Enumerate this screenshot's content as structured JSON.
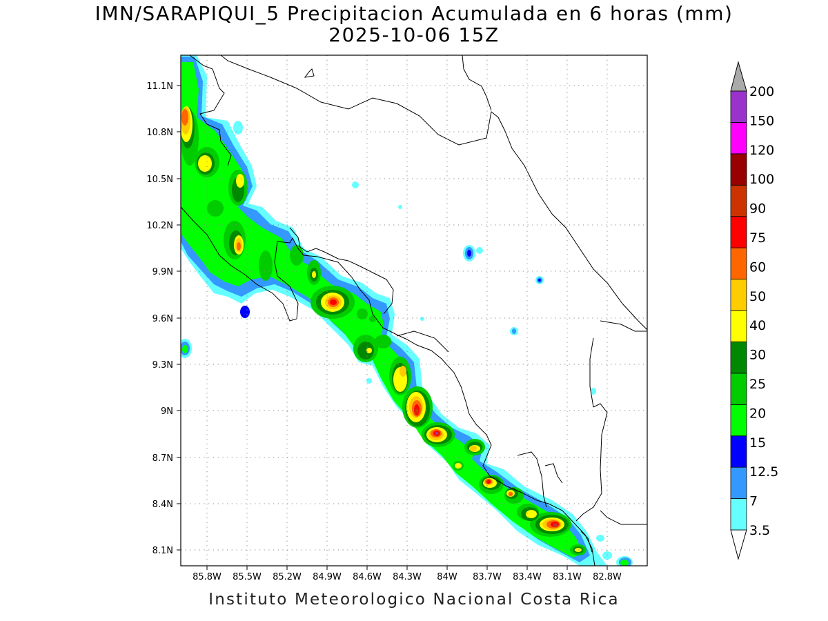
{
  "title": "IMN/SARAPIQUI_5 Precipitacion Acumulada en 6 horas (mm)",
  "subtitle": "2025-10-06 15Z",
  "footer": "Instituto Meteorologico Nacional Costa Rica",
  "map": {
    "lon_labels": [
      "85.8W",
      "85.5W",
      "85.2W",
      "84.9W",
      "84.6W",
      "84.3W",
      "84W",
      "83.7W",
      "83.4W",
      "83.1W",
      "82.8W"
    ],
    "lat_labels": [
      "11.1N",
      "10.8N",
      "10.5N",
      "10.2N",
      "9.9N",
      "9.6N",
      "9.3N",
      "9N",
      "8.7N",
      "8.4N",
      "8.1N"
    ],
    "grid": "dotted",
    "region": "Costa Rica"
  },
  "legend": {
    "unit": "mm",
    "labels": [
      "3.5",
      "7",
      "12.5",
      "15",
      "20",
      "25",
      "30",
      "40",
      "50",
      "60",
      "75",
      "90",
      "100",
      "120",
      "150",
      "200"
    ],
    "colors": [
      "#66ffff",
      "#3399ff",
      "#0000ff",
      "#00ff00",
      "#00cc00",
      "#008800",
      "#ffff00",
      "#ffcc00",
      "#ff6600",
      "#ff0000",
      "#cc3300",
      "#990000",
      "#ff00ff",
      "#9933cc",
      "#f5f5f5",
      "#aaaaaa"
    ]
  }
}
